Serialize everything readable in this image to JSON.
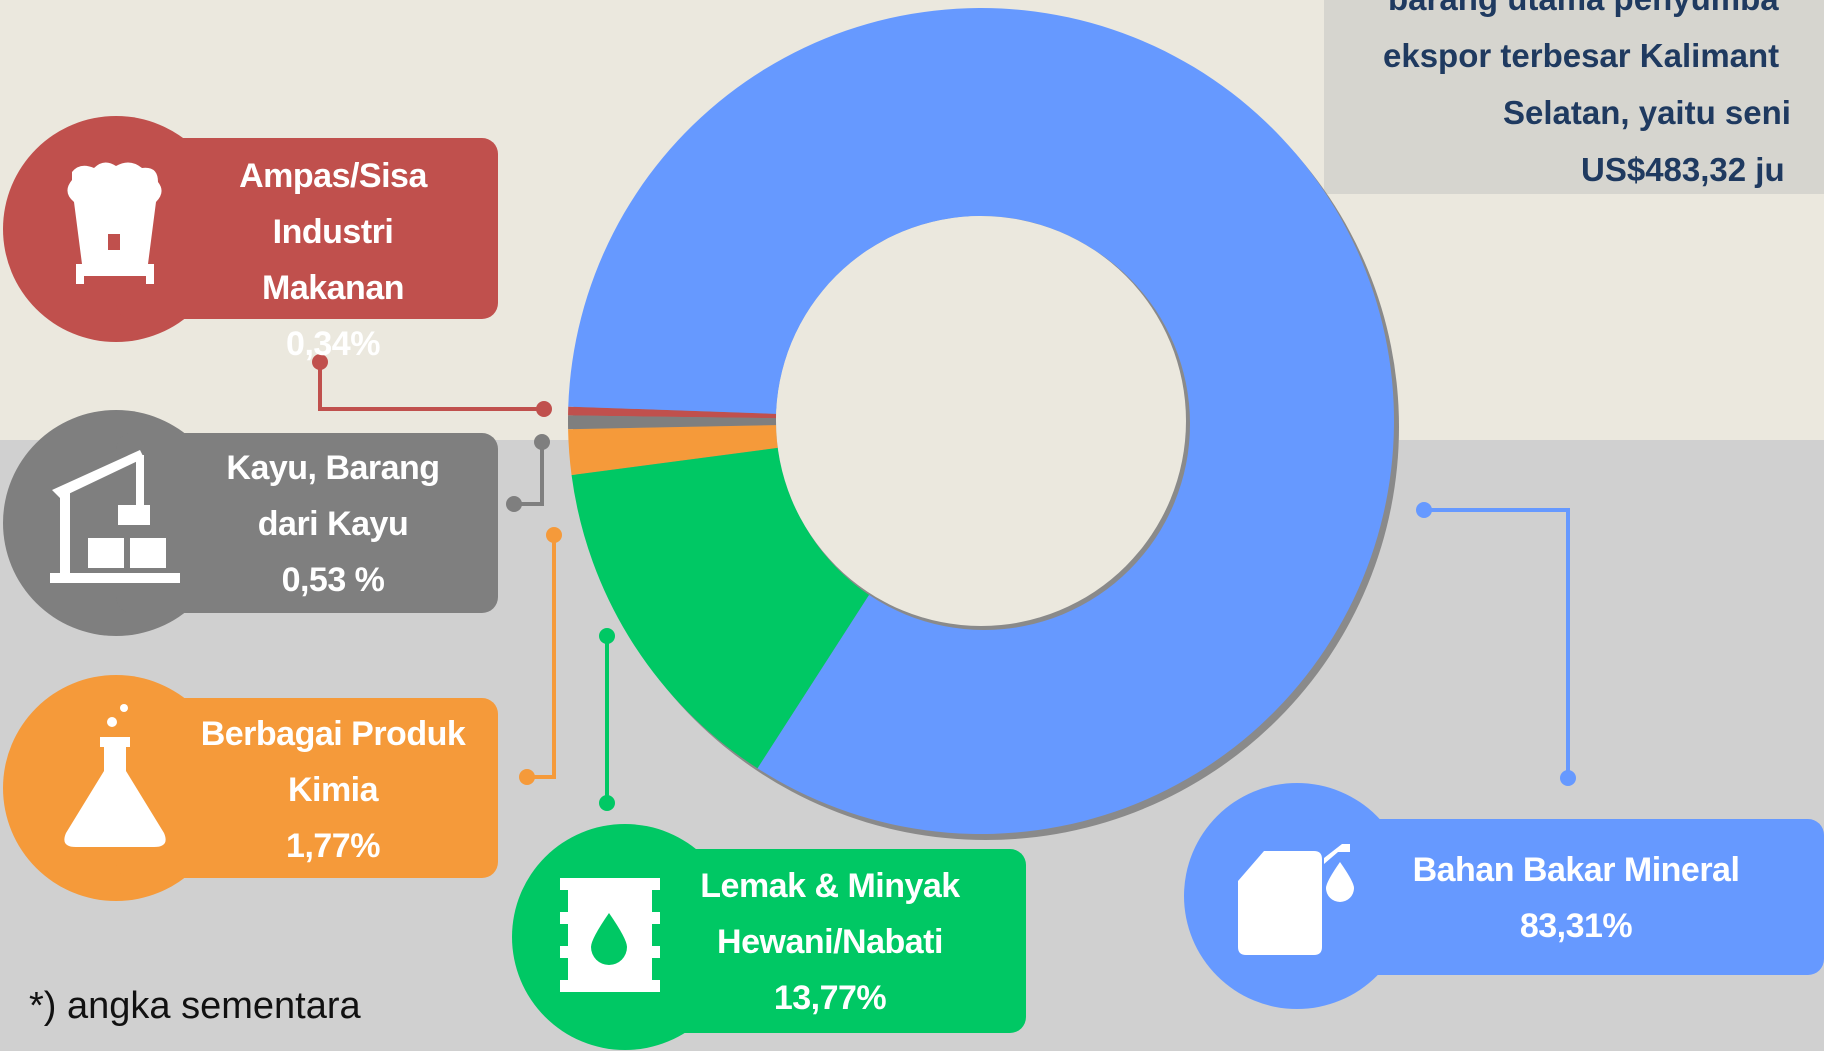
{
  "chart_data": {
    "type": "donut",
    "categories": [
      "Ampas/Sisa Industri Makanan",
      "Kayu, Barang dari Kayu",
      "Berbagai Produk Kimia",
      "Lemak & Minyak Hewani/Nabati",
      "Bahan Bakar Mineral"
    ],
    "values": [
      0.34,
      0.53,
      1.77,
      13.77,
      83.31
    ],
    "value_labels": [
      "0,34%",
      "0,53 %",
      "1,77%",
      "13,77%",
      "83,31%"
    ],
    "colors": [
      "#c0504d",
      "#7f7f7f",
      "#f59a3a",
      "#00c864",
      "#6699ff"
    ],
    "annotations": [
      "barang utama penyumba",
      "ekspor terbesar Kalimant",
      "Selatan, yaitu seni",
      "US$483,32 ju"
    ],
    "footnote": "*) angka sementara"
  }
}
